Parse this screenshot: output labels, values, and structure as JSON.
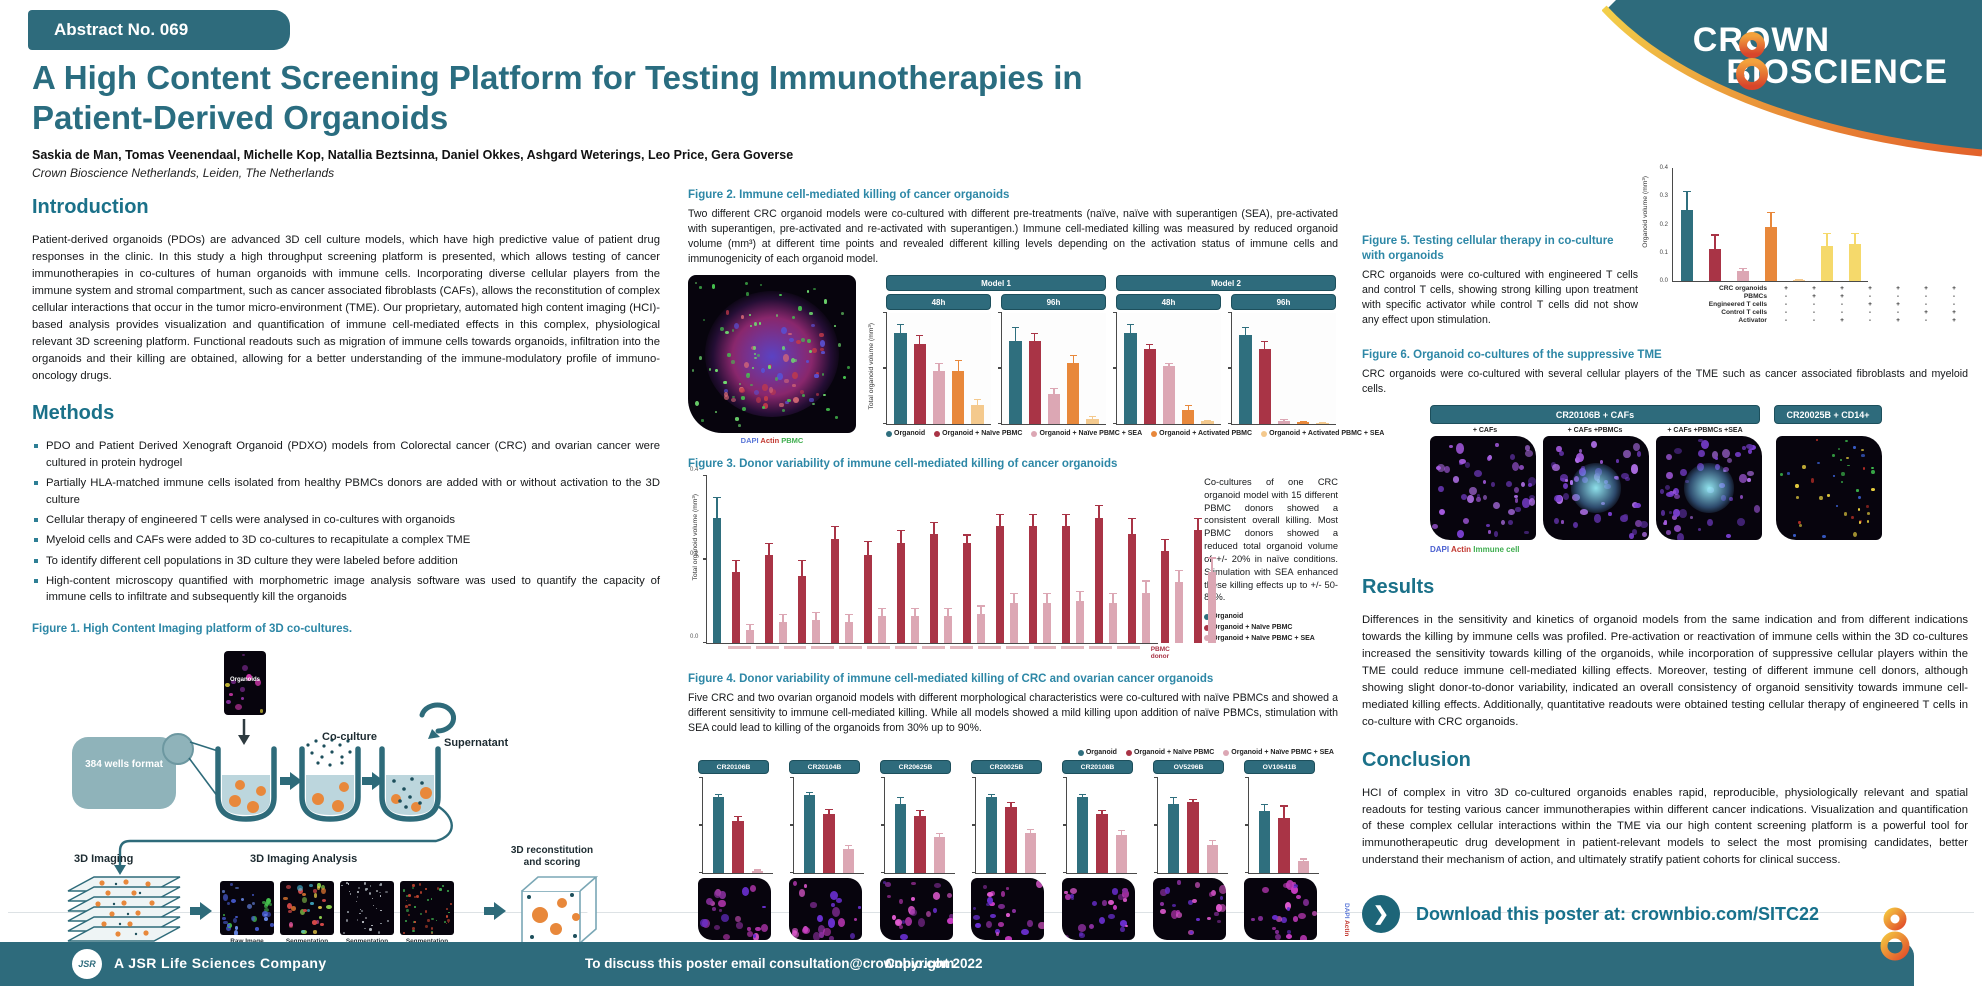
{
  "palette": {
    "teal": "#2f6f7e",
    "red": "#a93446",
    "pink": "#dca7b4",
    "orange": "#e8883b",
    "tan": "#f4c98d",
    "yellow": "#f5d96b"
  },
  "brand": {
    "teal_dark": "#2e6b7c",
    "teal_heading": "#1b7189",
    "caption_teal": "#2d87a6",
    "orange": "#e2622b",
    "yellow": "#f0c93e"
  },
  "header": {
    "badge": "Abstract No. 069",
    "title": "A High Content Screening Platform for Testing Immunotherapies in Patient-Derived Organoids",
    "authors": "Saskia de Man, Tomas Veenendaal, Michelle Kop, Natallia Beztsinna, Daniel Okkes, Ashgard Weterings, Leo Price, Gera Goverse",
    "affiliation": "Crown Bioscience Netherlands, Leiden, The Netherlands"
  },
  "logo": {
    "line1": "CROWN",
    "line2": "BIOSCIENCE"
  },
  "sections": {
    "introduction": {
      "heading": "Introduction",
      "body": "Patient-derived organoids (PDOs) are advanced 3D cell culture models, which have high predictive value of patient drug responses in the clinic. In this study a high throughput screening platform is presented, which allows testing of cancer immunotherapies in co-cultures of human organoids with immune cells. Incorporating diverse cellular players from the immune system and stromal compartment, such as cancer associated fibroblasts (CAFs), allows the reconstitution of complex cellular interactions that occur in the tumor micro-environment (TME). Our proprietary, automated high content imaging (HCI)-based analysis provides visualization and quantification of immune cell-mediated effects in this complex, physiological relevant 3D screening platform. Functional readouts such as migration of immune cells towards organoids, infiltration into the organoids and their killing are obtained, allowing for a better understanding of the immune-modulatory profile of immuno-oncology drugs."
    },
    "methods": {
      "heading": "Methods",
      "bullets": [
        "PDO and Patient Derived Xenograft Organoid (PDXO) models from Colorectal cancer (CRC) and ovarian cancer were cultured in protein hydrogel",
        "Partially HLA-matched immune cells isolated from healthy PBMCs donors are added with or without activation to the 3D culture",
        "Cellular therapy of engineered T cells were analysed in co-cultures with organoids",
        "Myeloid cells and CAFs were added to 3D co-cultures to recapitulate a complex TME",
        "To identify different cell populations in 3D culture they were labeled before addition",
        "High-content microscopy quantified with morphometric image analysis software was used to quantify the capacity of immune cells to infiltrate and subsequently kill the organoids"
      ]
    },
    "results": {
      "heading": "Results",
      "body": "Differences in the sensitivity and kinetics of organoid models from the same indication and from different indications towards the killing by immune cells was profiled. Pre-activation or reactivation of immune cells within the 3D co-cultures increased the sensitivity towards killing of the organoids, while incorporation of suppressive cellular players within the TME could reduce immune cell-mediated killing effects. Moreover, testing of different immune cell donors, although showing slight donor-to-donor variability, indicated an overall consistency of organoid sensitivity towards immune cell-mediated killing effects. Additionally, quantitative readouts were obtained testing cellular therapy of engineered T cells in co-culture with CRC organoids."
    },
    "conclusion": {
      "heading": "Conclusion",
      "body": "HCI of complex in vitro 3D co-cultured organoids enables rapid, reproducible, physiologically relevant and spatial readouts for testing various cancer immunotherapies within different cancer indications. Visualization and quantification of these complex cellular interactions within the TME via our high content screening platform is a powerful tool for immunotherapeutic drug development in patient-relevant models to select the most promising candidates, better understand their mechanism of action, and ultimately stratify patient cohorts for clinical success."
    }
  },
  "figures": {
    "fig1": {
      "caption": "Figure 1. High Content Imaging platform of 3D co-cultures.",
      "labels": {
        "organoids": "Organoids",
        "wells": "384 wells format",
        "coculture": "Co-culture",
        "supernatant": "Supernatant",
        "imaging": "3D Imaging",
        "analysis": "3D Imaging Analysis",
        "raw": "Raw Image",
        "seg_tumoroids": "Segmentation mask Tumoroids",
        "seg_immune": "Segmentation mask Immune cells",
        "seg_overlay": "Segmentation mask Overlay",
        "recon": "3D reconstitution and scoring"
      }
    },
    "fig2": {
      "caption": "Figure 2. Immune cell-mediated killing of cancer organoids",
      "body": "Two different CRC organoid models were co-cultured with different pre-treatments (naïve, naïve with superantigen (SEA), pre-activated with superantigen, pre-activated and re-activated with superantigen.) Immune cell-mediated killing was measured by reduced organoid volume (mm³) at different time points and revealed different killing levels depending on the activation status of immune cells and immunogenicity of each organoid model.",
      "image_legend": [
        {
          "label": "DAPI",
          "color": "#5a77d8"
        },
        {
          "label": "Actin",
          "color": "#c2372f"
        },
        {
          "label": "PBMC",
          "color": "#3fae4f"
        }
      ]
    },
    "fig3": {
      "caption": "Figure 3. Donor variability of immune cell-mediated killing of cancer organoids",
      "side_text": "Co-cultures of one CRC organoid model with 15 different PBMC donors showed a consistent overall killing. Most PBMC donors showed a reduced total organoid volume of +/- 20% in naïve conditions. Stimulation with SEA enhanced these killing effects up to +/- 50-80%."
    },
    "fig4": {
      "caption": "Figure 4. Donor variability of immune cell-mediated killing of CRC and ovarian cancer organoids",
      "body": "Five CRC and two ovarian organoid models with different morphological characteristics were co-cultured with naïve PBMCs and showed a different sensitivity to immune cell-mediated killing. While all models showed a mild killing upon addition of naïve PBMCs, stimulation with SEA could lead to killing of the organoids from 30% up to 90%.",
      "image_legend": [
        {
          "label": "DAPI",
          "color": "#5a77d8"
        },
        {
          "label": "Actin",
          "color": "#c2372f"
        }
      ]
    },
    "fig5": {
      "caption": "Figure 5. Testing cellular therapy in co-culture with organoids",
      "body": "CRC organoids were co-cultured with engineered T cells and control T cells, showing strong killing upon treatment with specific activator while control T cells did not show any effect upon stimulation."
    },
    "fig6": {
      "caption": "Figure 6. Organoid co-cultures of the suppressive TME",
      "body": "CRC organoids were co-cultured with several cellular players of the TME such as cancer associated fibroblasts and myeloid cells.",
      "group1": "CR20106B + CAFs",
      "group2": "CR20025B + CD14+",
      "sub_labels": [
        "+ CAFs",
        "+ CAFs +PBMCs",
        "+ CAFs +PBMCs +SEA"
      ],
      "image_legend": [
        {
          "label": "DAPI",
          "color": "#4a5fd0"
        },
        {
          "label": "Actin",
          "color": "#c2372f"
        },
        {
          "label": "Immune cell",
          "color": "#3fae4f"
        }
      ]
    }
  },
  "download": {
    "text": "Download this poster at: crownbio.com/SITC22"
  },
  "footer": {
    "jsr": "JSR",
    "company": "A JSR Life Sciences Company",
    "contact": "To discuss this poster email consultation@crownbio.com",
    "copyright": "Copyright 2022"
  },
  "chart_data": [
    {
      "id": "fig2",
      "type": "bar",
      "ylabel": "Total organoid volume (mm³)",
      "ylim": [
        0,
        0.4
      ],
      "conditions": [
        "Organoid",
        "Organoid + Naïve PBMC",
        "Organoid + Naïve PBMC + SEA",
        "Organoid + Activated PBMC",
        "Organoid + Activated PBMC + SEA"
      ],
      "colors": [
        "teal",
        "red",
        "pink",
        "orange",
        "tan"
      ],
      "header_groups": [
        "Model 1",
        "Model 2"
      ],
      "panels": [
        {
          "model": "Model 1",
          "time": "48h",
          "values": [
            0.33,
            0.29,
            0.19,
            0.19,
            0.07
          ],
          "errors": [
            0.03,
            0.03,
            0.03,
            0.04,
            0.02
          ]
        },
        {
          "model": "Model 1",
          "time": "96h",
          "values": [
            0.3,
            0.3,
            0.11,
            0.22,
            0.02
          ],
          "errors": [
            0.05,
            0.03,
            0.02,
            0.03,
            0.01
          ]
        },
        {
          "model": "Model 2",
          "time": "48h",
          "values": [
            0.33,
            0.27,
            0.21,
            0.05,
            0.01
          ],
          "errors": [
            0.03,
            0.02,
            0.01,
            0.02,
            0.005
          ]
        },
        {
          "model": "Model 2",
          "time": "96h",
          "values": [
            0.32,
            0.27,
            0.012,
            0.008,
            0.005
          ],
          "errors": [
            0.03,
            0.03,
            0.006,
            0.004,
            0.002
          ]
        }
      ],
      "legend": [
        {
          "label": "Organoid",
          "color": "teal"
        },
        {
          "label": "Organoid + Naïve PBMC",
          "color": "red"
        },
        {
          "label": "Organoid + Naïve PBMC + SEA",
          "color": "pink"
        },
        {
          "label": "Organoid + Activated PBMC",
          "color": "orange"
        },
        {
          "label": "Organoid + Activated PBMC + SEA",
          "color": "tan"
        }
      ]
    },
    {
      "id": "fig3",
      "type": "bar",
      "ylabel": "Total organoid volume (mm³)",
      "xlabel": "PBMC donor",
      "ylim": [
        0,
        0.4
      ],
      "yticks": [
        "0.4",
        "0.2",
        "0.0"
      ],
      "organoid": {
        "label": "Organoid",
        "color": "teal",
        "value": 0.3,
        "error": 0.05
      },
      "series": [
        {
          "name": "Organoid + Naïve PBMC",
          "color": "red",
          "values": [
            0.17,
            0.21,
            0.16,
            0.25,
            0.21,
            0.24,
            0.26,
            0.24,
            0.28,
            0.28,
            0.28,
            0.3,
            0.26,
            0.22,
            0.27
          ],
          "errors": [
            0.03,
            0.03,
            0.04,
            0.03,
            0.035,
            0.03,
            0.03,
            0.02,
            0.03,
            0.03,
            0.03,
            0.03,
            0.04,
            0.03,
            0.03
          ]
        },
        {
          "name": "Organoid + Naïve PBMC + SEA",
          "color": "pink",
          "values": [
            0.03,
            0.05,
            0.055,
            0.05,
            0.065,
            0.065,
            0.065,
            0.07,
            0.095,
            0.095,
            0.1,
            0.095,
            0.12,
            0.145,
            0.17
          ],
          "errors": [
            0.015,
            0.02,
            0.02,
            0.02,
            0.02,
            0.02,
            0.02,
            0.02,
            0.025,
            0.025,
            0.025,
            0.025,
            0.03,
            0.03,
            0.035
          ]
        }
      ],
      "legend": [
        {
          "label": "Organoid",
          "color": "teal"
        },
        {
          "label": "Organoid + Naïve PBMC",
          "color": "red"
        },
        {
          "label": "Organoid + Naïve PBMC + SEA",
          "color": "pink"
        }
      ]
    },
    {
      "id": "fig4",
      "type": "bar",
      "ylabel": "Total organoid volume (mm³)",
      "ylim": [
        0,
        0.4
      ],
      "conditions": [
        "Organoid",
        "Organoid + Naïve PBMC",
        "Organoid + Naïve PBMC + SEA"
      ],
      "colors": [
        "teal",
        "red",
        "pink"
      ],
      "panels": [
        {
          "model": "CR20106B",
          "values": [
            0.32,
            0.22,
            0.01
          ],
          "errors": [
            0.012,
            0.02,
            0.005
          ]
        },
        {
          "model": "CR20104B",
          "values": [
            0.33,
            0.25,
            0.1
          ],
          "errors": [
            0.012,
            0.02,
            0.02
          ]
        },
        {
          "model": "CR20625B",
          "values": [
            0.29,
            0.24,
            0.15
          ],
          "errors": [
            0.03,
            0.025,
            0.02
          ]
        },
        {
          "model": "CR20025B",
          "values": [
            0.32,
            0.28,
            0.17
          ],
          "errors": [
            0.012,
            0.02,
            0.015
          ]
        },
        {
          "model": "CR20108B",
          "values": [
            0.32,
            0.25,
            0.16
          ],
          "errors": [
            0.012,
            0.015,
            0.02
          ]
        },
        {
          "model": "OV5296B",
          "values": [
            0.29,
            0.3,
            0.12
          ],
          "errors": [
            0.03,
            0.012,
            0.02
          ]
        },
        {
          "model": "OV10641B",
          "values": [
            0.26,
            0.23,
            0.05
          ],
          "errors": [
            0.03,
            0.055,
            0.012
          ]
        }
      ],
      "legend": [
        {
          "label": "Organoid",
          "color": "teal"
        },
        {
          "label": "Organoid + Naïve PBMC",
          "color": "red"
        },
        {
          "label": "Organoid + Naïve PBMC + SEA",
          "color": "pink"
        }
      ]
    },
    {
      "id": "fig5",
      "type": "bar",
      "ylabel": "Organoid volume (mm³)",
      "ylim": [
        0,
        0.4
      ],
      "yticks": [
        "0.4",
        "0.3",
        "0.2",
        "0.1",
        "0.0"
      ],
      "values": [
        0.25,
        0.115,
        0.035,
        0.19,
        0.005,
        0.125,
        0.13
      ],
      "errors": [
        0.07,
        0.05,
        0.012,
        0.055,
        0.003,
        0.045,
        0.04
      ],
      "colors": [
        "teal",
        "red",
        "pink",
        "orange",
        "tan",
        "yellow",
        "yellow"
      ],
      "matrix": {
        "labels": [
          "CRC organoids",
          "PBMCs",
          "Engineered T cells",
          "Control T cells",
          "Activator"
        ],
        "rows": [
          [
            "+",
            "+",
            "+",
            "+",
            "+",
            "+",
            "+"
          ],
          [
            "-",
            "+",
            "+",
            "-",
            "-",
            "-",
            "-"
          ],
          [
            "-",
            "-",
            "-",
            "+",
            "+",
            "-",
            "-"
          ],
          [
            "-",
            "-",
            "-",
            "-",
            "-",
            "+",
            "+"
          ],
          [
            "-",
            "-",
            "+",
            "-",
            "+",
            "-",
            "+"
          ]
        ]
      }
    }
  ]
}
